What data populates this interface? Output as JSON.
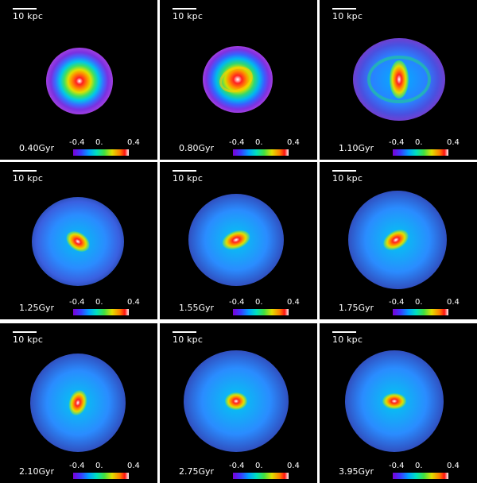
{
  "scale_label": "10 kpc",
  "colorbar": {
    "ticks": [
      "-0.4",
      "0.",
      "0.4"
    ]
  },
  "panels": [
    {
      "time": "0.40Gyr"
    },
    {
      "time": "0.80Gyr"
    },
    {
      "time": "1.10Gyr"
    },
    {
      "time": "1.25Gyr"
    },
    {
      "time": "1.55Gyr"
    },
    {
      "time": "1.75Gyr"
    },
    {
      "time": "2.10Gyr"
    },
    {
      "time": "2.75Gyr"
    },
    {
      "time": "3.95Gyr"
    }
  ]
}
